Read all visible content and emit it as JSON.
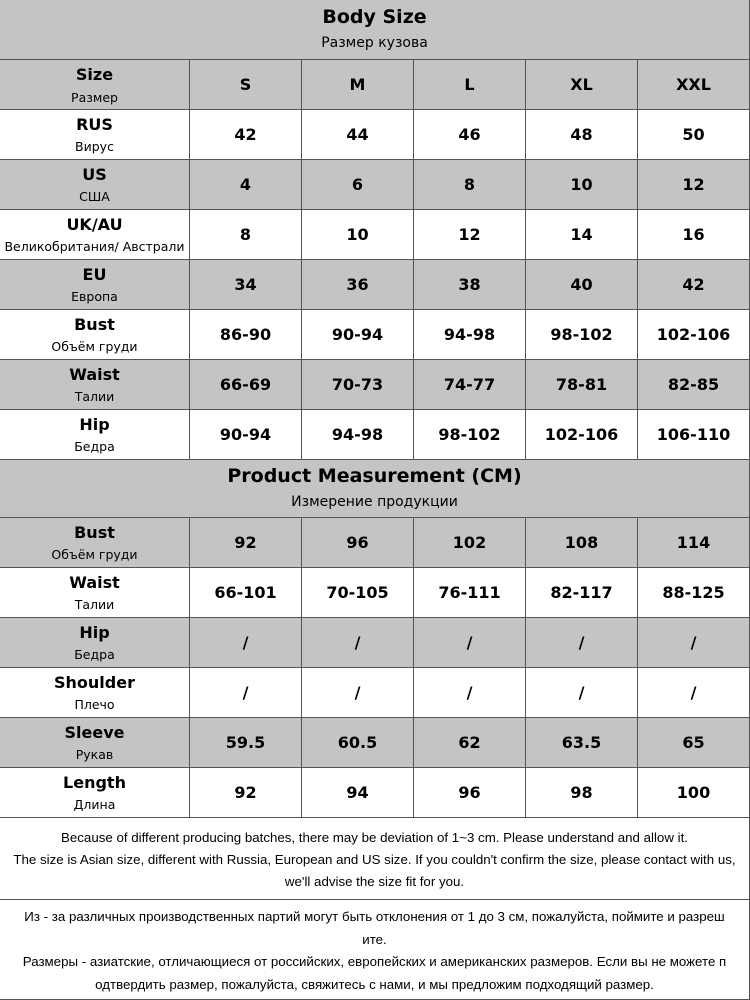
{
  "body_size": {
    "title": "Body Size",
    "subtitle": "Размер кузова",
    "header": {
      "label": "Size",
      "sublabel": "Размер",
      "sizes": [
        "S",
        "M",
        "L",
        "XL",
        "XXL"
      ]
    },
    "rows": [
      {
        "label": "RUS",
        "sublabel": "Вирус",
        "cells": [
          "42",
          "44",
          "46",
          "48",
          "50"
        ]
      },
      {
        "label": "US",
        "sublabel": "США",
        "cells": [
          "4",
          "6",
          "8",
          "10",
          "12"
        ]
      },
      {
        "label": "UK/AU",
        "sublabel": "Великобритания/ Австрали",
        "cells": [
          "8",
          "10",
          "12",
          "14",
          "16"
        ]
      },
      {
        "label": "EU",
        "sublabel": "Европа",
        "cells": [
          "34",
          "36",
          "38",
          "40",
          "42"
        ]
      },
      {
        "label": "Bust",
        "sublabel": "Объём груди",
        "cells": [
          "86-90",
          "90-94",
          "94-98",
          "98-102",
          "102-106"
        ]
      },
      {
        "label": "Waist",
        "sublabel": "Талии",
        "cells": [
          "66-69",
          "70-73",
          "74-77",
          "78-81",
          "82-85"
        ]
      },
      {
        "label": "Hip",
        "sublabel": "Бедра",
        "cells": [
          "90-94",
          "94-98",
          "98-102",
          "102-106",
          "106-110"
        ]
      }
    ]
  },
  "product_measurement": {
    "title": "Product Measurement (CM)",
    "subtitle": "Измерение продукции",
    "rows": [
      {
        "label": "Bust",
        "sublabel": "Объём груди",
        "cells": [
          "92",
          "96",
          "102",
          "108",
          "114"
        ]
      },
      {
        "label": "Waist",
        "sublabel": "Талии",
        "cells": [
          "66-101",
          "70-105",
          "76-111",
          "82-117",
          "88-125"
        ]
      },
      {
        "label": "Hip",
        "sublabel": "Бедра",
        "cells": [
          "/",
          "/",
          "/",
          "/",
          "/"
        ]
      },
      {
        "label": "Shoulder",
        "sublabel": "Плечо",
        "cells": [
          "/",
          "/",
          "/",
          "/",
          "/"
        ]
      },
      {
        "label": "Sleeve",
        "sublabel": "Рукав",
        "cells": [
          "59.5",
          "60.5",
          "62",
          "63.5",
          "65"
        ]
      },
      {
        "label": "Length",
        "sublabel": "Длина",
        "cells": [
          "92",
          "94",
          "96",
          "98",
          "100"
        ]
      }
    ]
  },
  "notes": {
    "english": [
      "Because of different producing batches, there may be deviation of 1~3 cm. Please understand and allow it.",
      "The size is Asian size, different with Russia, European and US size. If you couldn't confirm the size, please contact with us,",
      "we'll advise the size fit for you."
    ],
    "russian": [
      "Из - за различных производственных партий могут быть отклонения от 1 до 3 см, пожалуйста, поймите и разреш",
      "ите.",
      "Размеры - азиатские, отличающиеся от российских, европейских и американских размеров. Если вы не можете п",
      "одтвердить размер, пожалуйста, свяжитесь с нами, и мы предложим подходящий размер."
    ]
  }
}
